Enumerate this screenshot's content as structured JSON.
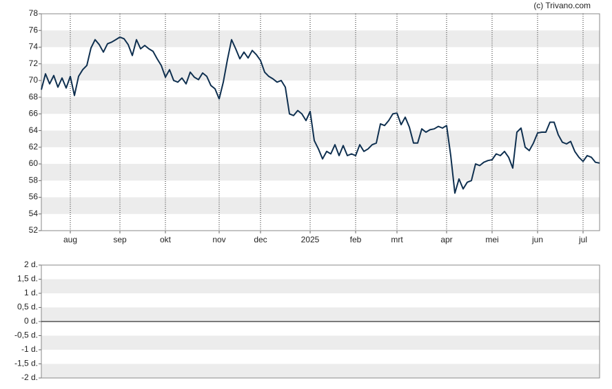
{
  "chart_data": [
    {
      "type": "line",
      "source": "(c) Trivano.com",
      "categories": [
        null,
        null,
        null,
        null,
        null,
        null,
        null,
        "aug",
        null,
        null,
        null,
        null,
        null,
        null,
        null,
        null,
        null,
        null,
        null,
        "sep",
        null,
        null,
        null,
        null,
        null,
        null,
        null,
        null,
        null,
        null,
        "okt",
        null,
        null,
        null,
        null,
        null,
        null,
        null,
        null,
        null,
        null,
        null,
        null,
        "nov",
        null,
        null,
        null,
        null,
        null,
        null,
        null,
        null,
        null,
        "dec",
        null,
        null,
        null,
        null,
        null,
        null,
        null,
        null,
        null,
        null,
        null,
        "2025",
        null,
        null,
        null,
        null,
        null,
        null,
        null,
        null,
        null,
        null,
        "feb",
        null,
        null,
        null,
        null,
        null,
        null,
        null,
        null,
        null,
        "mrt",
        null,
        null,
        null,
        null,
        null,
        null,
        null,
        null,
        null,
        null,
        null,
        "apr",
        null,
        null,
        null,
        null,
        null,
        null,
        null,
        null,
        null,
        null,
        "mei",
        null,
        null,
        null,
        null,
        null,
        null,
        null,
        null,
        null,
        null,
        "jun",
        null,
        null,
        null,
        null,
        null,
        null,
        null,
        null,
        null,
        null,
        "jul",
        null,
        null,
        null,
        null
      ],
      "series": [
        {
          "color": "#0e2f4f",
          "values": [
            68.9,
            70.8,
            69.6,
            70.6,
            69.2,
            70.3,
            69.1,
            70.5,
            68.2,
            70.5,
            71.3,
            71.8,
            73.9,
            74.9,
            74.3,
            73.4,
            74.4,
            74.6,
            74.9,
            75.2,
            75.0,
            74.3,
            73.0,
            74.9,
            73.8,
            74.2,
            73.8,
            73.5,
            72.6,
            71.8,
            70.4,
            71.3,
            70.0,
            69.8,
            70.3,
            69.6,
            71.0,
            70.4,
            70.1,
            70.9,
            70.5,
            69.4,
            69.0,
            67.8,
            69.8,
            72.5,
            74.9,
            73.8,
            72.6,
            73.4,
            72.7,
            73.6,
            73.1,
            72.4,
            71.0,
            70.5,
            70.2,
            69.8,
            70.0,
            69.2,
            66.0,
            65.8,
            66.4,
            66.0,
            65.2,
            66.3,
            62.8,
            61.8,
            60.6,
            61.5,
            61.2,
            62.3,
            61.0,
            62.2,
            61.0,
            61.2,
            61.0,
            62.3,
            61.5,
            61.8,
            62.3,
            62.5,
            64.8,
            64.6,
            65.2,
            66.0,
            66.1,
            64.7,
            65.6,
            64.4,
            62.5,
            62.5,
            64.2,
            63.8,
            64.1,
            64.2,
            64.5,
            64.3,
            64.6,
            61.0,
            56.5,
            58.2,
            57.0,
            57.8,
            58.0,
            60.0,
            59.8,
            60.2,
            60.4,
            60.5,
            61.2,
            61.0,
            61.5,
            60.8,
            59.5,
            63.8,
            64.3,
            62.0,
            61.6,
            62.5,
            63.7,
            63.8,
            63.8,
            65.0,
            65.0,
            63.5,
            62.6,
            62.4,
            62.7,
            61.5,
            60.8,
            60.3,
            61.0,
            60.8,
            60.2,
            60.1
          ]
        }
      ],
      "ylim": [
        52,
        78
      ],
      "yticks": [
        52,
        54,
        56,
        58,
        60,
        62,
        64,
        66,
        68,
        70,
        72,
        74,
        76,
        78
      ]
    },
    {
      "type": "bar",
      "ylim": [
        -2,
        2
      ],
      "yticks": [
        {
          "value": 2,
          "label": "2 d."
        },
        {
          "value": 1.5,
          "label": "1,5 d."
        },
        {
          "value": 1,
          "label": "1 d."
        },
        {
          "value": 0.5,
          "label": "0,5 d."
        },
        {
          "value": 0,
          "label": "0 d."
        },
        {
          "value": -0.5,
          "label": "-0,5 d."
        },
        {
          "value": -1,
          "label": "-1 d."
        },
        {
          "value": -1.5,
          "label": "-1,5 d."
        },
        {
          "value": -2,
          "label": "-2 d."
        }
      ]
    }
  ]
}
